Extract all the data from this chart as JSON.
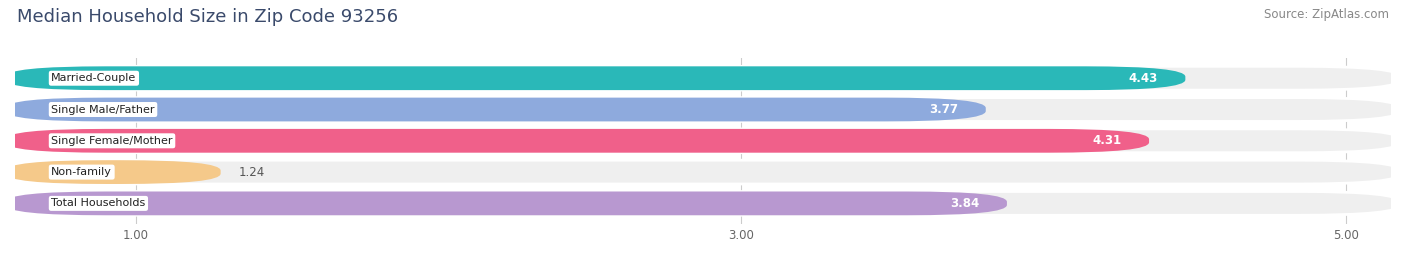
{
  "title": "Median Household Size in Zip Code 93256",
  "source": "Source: ZipAtlas.com",
  "categories": [
    "Married-Couple",
    "Single Male/Father",
    "Single Female/Mother",
    "Non-family",
    "Total Households"
  ],
  "values": [
    4.43,
    3.77,
    4.31,
    1.24,
    3.84
  ],
  "bar_colors": [
    "#2ab8b8",
    "#8eaadd",
    "#f0608a",
    "#f5c98a",
    "#b898d0"
  ],
  "label_colors": [
    "white",
    "white",
    "white",
    "#555555",
    "white"
  ],
  "xlim": [
    0.6,
    5.15
  ],
  "xticks": [
    1.0,
    3.0,
    5.0
  ],
  "bar_height": 0.68,
  "title_fontsize": 13,
  "source_fontsize": 8.5,
  "label_fontsize": 8,
  "value_fontsize": 8.5,
  "background_color": "#ffffff",
  "bar_bg_color": "#efefef"
}
